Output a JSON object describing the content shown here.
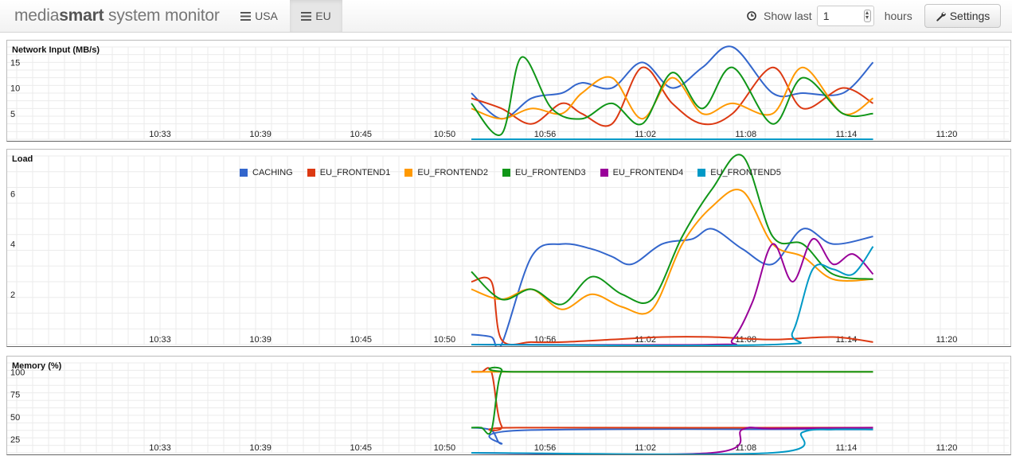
{
  "navbar": {
    "brand_light": "media",
    "brand_bold": "smart",
    "brand_rest": " system monitor",
    "tabs": [
      {
        "label": "USA",
        "icon": "list-icon",
        "active": false
      },
      {
        "label": "EU",
        "icon": "list-icon",
        "active": true
      }
    ],
    "show_last_label": "Show last",
    "hours_value": "1",
    "hours_unit": "hours",
    "settings_label": "Settings",
    "clock_icon": "clock-icon",
    "settings_icon": "wrench-icon"
  },
  "colors": {
    "CACHING": "#3366cc",
    "EU_FRONTEND1": "#dc3912",
    "EU_FRONTEND2": "#ff9900",
    "EU_FRONTEND3": "#109618",
    "EU_FRONTEND4": "#990099",
    "EU_FRONTEND5": "#0099c6"
  },
  "legend": [
    "CACHING",
    "EU_FRONTEND1",
    "EU_FRONTEND2",
    "EU_FRONTEND3",
    "EU_FRONTEND4",
    "EU_FRONTEND5"
  ],
  "chart_data": [
    {
      "type": "line",
      "title": "Network Input (MB/s)",
      "x_ticks": [
        "10:33",
        "10:39",
        "10:45",
        "10:50",
        "10:56",
        "11:02",
        "11:08",
        "11:14",
        "11:20"
      ],
      "y_ticks": [
        5,
        10,
        15
      ],
      "ylim": [
        0,
        18
      ],
      "series": [
        {
          "name": "CACHING",
          "x": [
            10.86,
            10.89,
            10.92,
            10.95,
            10.97,
            11.0,
            11.03,
            11.06,
            11.09,
            11.12,
            11.16,
            11.19,
            11.23,
            11.26
          ],
          "values": [
            9,
            4,
            8,
            9,
            11,
            10,
            15,
            10,
            14,
            18,
            9,
            9,
            9,
            15
          ]
        },
        {
          "name": "EU_FRONTEND1",
          "x": [
            10.86,
            10.89,
            10.92,
            10.95,
            10.97,
            11.0,
            11.03,
            11.06,
            11.09,
            11.12,
            11.16,
            11.19,
            11.23,
            11.26
          ],
          "values": [
            8,
            6,
            3,
            7,
            5,
            3,
            14,
            7,
            3,
            5,
            14,
            6,
            10,
            7
          ]
        },
        {
          "name": "EU_FRONTEND2",
          "x": [
            10.86,
            10.89,
            10.92,
            10.95,
            10.97,
            11.0,
            11.03,
            11.06,
            11.09,
            11.12,
            11.16,
            11.19,
            11.23,
            11.26
          ],
          "values": [
            6,
            4,
            6,
            5,
            9,
            12,
            4,
            12,
            5,
            7,
            5,
            14,
            5,
            8
          ]
        },
        {
          "name": "EU_FRONTEND3",
          "x": [
            10.86,
            10.89,
            10.91,
            10.94,
            10.97,
            11.0,
            11.03,
            11.06,
            11.09,
            11.12,
            11.16,
            11.19,
            11.23,
            11.26
          ],
          "values": [
            7,
            1,
            16,
            6,
            4,
            7,
            3,
            13,
            6,
            14,
            3,
            12,
            5,
            5
          ]
        },
        {
          "name": "EU_FRONTEND5",
          "x": [
            10.86,
            11.26
          ],
          "values": [
            0,
            0
          ]
        }
      ]
    },
    {
      "type": "line",
      "title": "Load",
      "x_ticks": [
        "10:33",
        "10:39",
        "10:45",
        "10:50",
        "10:56",
        "11:02",
        "11:08",
        "11:14",
        "11:20"
      ],
      "y_ticks": [
        2,
        4,
        6
      ],
      "ylim": [
        0,
        7.5
      ],
      "series": [
        {
          "name": "CACHING",
          "x": [
            10.86,
            10.88,
            10.89,
            10.92,
            10.95,
            10.98,
            11.0,
            11.02,
            11.05,
            11.08,
            11.1,
            11.13,
            11.16,
            11.19,
            11.22,
            11.26
          ],
          "values": [
            0.4,
            0.3,
            0,
            3.5,
            4,
            3.8,
            3.5,
            3.2,
            4,
            4.2,
            4.6,
            3.8,
            3.2,
            4.6,
            4,
            4.3
          ]
        },
        {
          "name": "EU_FRONTEND1",
          "x": [
            10.86,
            10.88,
            10.89,
            10.92,
            10.95,
            11.0,
            11.05,
            11.1,
            11.16,
            11.22,
            11.26
          ],
          "values": [
            2.5,
            2.5,
            0.2,
            0.1,
            0.1,
            0.2,
            0.3,
            0.3,
            0.2,
            0.3,
            0.1
          ]
        },
        {
          "name": "EU_FRONTEND2",
          "x": [
            10.86,
            10.89,
            10.92,
            10.95,
            10.98,
            11.01,
            11.04,
            11.07,
            11.1,
            11.13,
            11.16,
            11.19,
            11.22,
            11.26
          ],
          "values": [
            2.2,
            1.8,
            2.2,
            1.4,
            2,
            1.5,
            1.4,
            4,
            5.5,
            6.1,
            4,
            3.5,
            2.6,
            2.6
          ]
        },
        {
          "name": "EU_FRONTEND3",
          "x": [
            10.86,
            10.89,
            10.92,
            10.95,
            10.98,
            11.01,
            11.04,
            11.07,
            11.1,
            11.13,
            11.16,
            11.19,
            11.22,
            11.26
          ],
          "values": [
            2.9,
            1.8,
            2.2,
            1.6,
            2.7,
            2,
            1.8,
            4.3,
            6.2,
            7.5,
            4.3,
            4,
            2.8,
            2.6
          ]
        },
        {
          "name": "EU_FRONTEND4",
          "x": [
            10.86,
            11.1,
            11.12,
            11.14,
            11.16,
            11.18,
            11.2,
            11.22,
            11.24,
            11.26
          ],
          "values": [
            0,
            0,
            0.2,
            1.7,
            4,
            2.5,
            4.2,
            3.2,
            3.6,
            2.8
          ]
        },
        {
          "name": "EU_FRONTEND5",
          "x": [
            10.86,
            11.16,
            11.18,
            11.2,
            11.22,
            11.24,
            11.26
          ],
          "values": [
            0,
            0,
            0.5,
            3,
            3,
            2.8,
            3.9
          ]
        }
      ]
    },
    {
      "type": "line",
      "title": "Memory (%)",
      "x_ticks": [
        "10:33",
        "10:39",
        "10:45",
        "10:50",
        "10:56",
        "11:02",
        "11:08",
        "11:14",
        "11:20"
      ],
      "y_ticks": [
        25,
        50,
        75,
        100
      ],
      "ylim": [
        10,
        110
      ],
      "series": [
        {
          "name": "CACHING",
          "x": [
            10.86,
            10.88,
            10.89,
            10.91,
            11.26
          ],
          "values": [
            38,
            35,
            20,
            35,
            36
          ]
        },
        {
          "name": "EU_FRONTEND1",
          "x": [
            10.86,
            10.87,
            10.88,
            10.89,
            10.91,
            11.26
          ],
          "values": [
            100,
            100,
            100,
            40,
            38,
            38
          ]
        },
        {
          "name": "EU_FRONTEND2",
          "x": [
            10.86,
            11.26
          ],
          "values": [
            100,
            100
          ]
        },
        {
          "name": "EU_FRONTEND3",
          "x": [
            10.86,
            10.87,
            10.88,
            10.89,
            10.91,
            11.26
          ],
          "values": [
            38,
            38,
            35,
            100,
            100,
            100
          ]
        },
        {
          "name": "EU_FRONTEND4",
          "x": [
            10.86,
            11.1,
            11.13,
            11.16,
            11.26
          ],
          "values": [
            10,
            10,
            36,
            37,
            38
          ]
        },
        {
          "name": "EU_FRONTEND5",
          "x": [
            10.86,
            11.16,
            11.19,
            11.22,
            11.26
          ],
          "values": [
            10,
            10,
            33,
            36,
            36
          ]
        }
      ]
    }
  ]
}
